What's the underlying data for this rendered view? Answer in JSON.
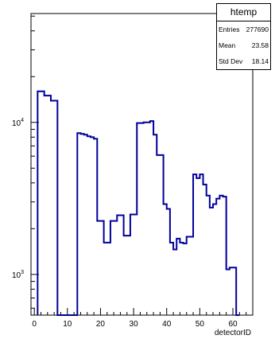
{
  "chart_data": {
    "type": "histogram",
    "title": "",
    "xlabel": "detectorID",
    "ylabel": "",
    "x_ticks": [
      "0",
      "10",
      "20",
      "30",
      "40",
      "50",
      "60"
    ],
    "y_ticks": [
      {
        "value": 1000,
        "mantissa": "10",
        "exponent": "3"
      },
      {
        "value": 10000,
        "mantissa": "10",
        "exponent": "4"
      }
    ],
    "xlim": [
      -1,
      66
    ],
    "ylim": [
      540,
      52000
    ],
    "log_y": true,
    "grid": false,
    "line_color": "#000099",
    "bins": {
      "width": 1,
      "values": [
        [
          1,
          16000
        ],
        [
          2,
          16000
        ],
        [
          3,
          15000
        ],
        [
          4,
          15000
        ],
        [
          5,
          13900
        ],
        [
          6,
          13900
        ],
        [
          7,
          0
        ],
        [
          13,
          8500
        ],
        [
          14,
          8400
        ],
        [
          15,
          8300
        ],
        [
          16,
          8100
        ],
        [
          17,
          8000
        ],
        [
          18,
          7800
        ],
        [
          19,
          2250
        ],
        [
          20,
          2250
        ],
        [
          21,
          1620
        ],
        [
          22,
          1620
        ],
        [
          23,
          2250
        ],
        [
          24,
          2250
        ],
        [
          25,
          2450
        ],
        [
          26,
          2450
        ],
        [
          27,
          1800
        ],
        [
          28,
          1800
        ],
        [
          29,
          2480
        ],
        [
          30,
          2480
        ],
        [
          31,
          9900
        ],
        [
          32,
          9900
        ],
        [
          33,
          10000
        ],
        [
          34,
          10000
        ],
        [
          35,
          10200
        ],
        [
          36,
          8300
        ],
        [
          37,
          6100
        ],
        [
          38,
          6100
        ],
        [
          39,
          2900
        ],
        [
          40,
          2700
        ],
        [
          41,
          1620
        ],
        [
          42,
          1460
        ],
        [
          43,
          1720
        ],
        [
          44,
          1620
        ],
        [
          45,
          1600
        ],
        [
          46,
          1770
        ],
        [
          47,
          1770
        ],
        [
          48,
          4550
        ],
        [
          49,
          4300
        ],
        [
          50,
          4550
        ],
        [
          51,
          3900
        ],
        [
          52,
          3300
        ],
        [
          53,
          2750
        ],
        [
          54,
          2900
        ],
        [
          55,
          3150
        ],
        [
          56,
          3300
        ],
        [
          57,
          3250
        ],
        [
          58,
          1080
        ],
        [
          59,
          1110
        ],
        [
          60,
          1110
        ],
        [
          61,
          540
        ]
      ]
    },
    "stats_box": {
      "name": "htemp",
      "entries_label": "Entries",
      "entries": "277690",
      "mean_label": "Mean",
      "mean": "23.58",
      "stddev_label": "Std Dev",
      "stddev": "18.14"
    }
  }
}
